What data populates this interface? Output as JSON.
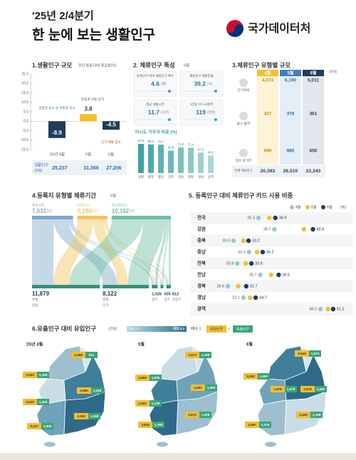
{
  "header": {
    "title_line1": "'25년 2/4분기",
    "title_line2": "한 눈에 보는 생활인구",
    "logo": "국가데이터처"
  },
  "section1": {
    "title": "1.생활인구 규모",
    "subtitle": "전년 동월 대비 증감률(%)",
    "ylim": [
      -15,
      25
    ],
    "yticks": [
      {
        "value": 25,
        "label": "25.0"
      },
      {
        "value": 20,
        "label": "20.0"
      },
      {
        "value": 15,
        "label": "15.0"
      },
      {
        "value": 10,
        "label": "10.0"
      },
      {
        "value": 5,
        "label": "5.0"
      },
      {
        "value": 0,
        "label": "0.0"
      },
      {
        "value": -5,
        "label": "-5.0"
      },
      {
        "value": -10,
        "label": "-10.0"
      },
      {
        "value": -15,
        "label": "-15.0"
      }
    ],
    "categories": [
      "'25년 4월",
      "5월",
      "6월"
    ],
    "values": [
      -8.9,
      3.8,
      -4.5
    ],
    "colors": [
      "#1f3d5c",
      "#f2bf2f",
      "#1f3d5c"
    ],
    "notes": [
      "공휴일 감소 등 이동량 감소",
      "연휴로 이동 증가",
      "단기 체류 감소"
    ],
    "row_label": "생활인구",
    "row_unit": "(천명)",
    "row_cells": [
      "25,237",
      "31,369",
      "27,206"
    ]
  },
  "section2": {
    "title": "2. 체류인구 특성",
    "month": "6월",
    "cards": [
      {
        "label": "등록인구 대비 체류인구 배수",
        "value": 4.6,
        "unit": "(배)"
      },
      {
        "label": "체류인구 재방문율",
        "value": 39.2,
        "unit": "(%)"
      },
      {
        "label": "평균 체류시간",
        "value": 11.7,
        "unit": "(시간)"
      },
      {
        "label": "1인당 카드사용액",
        "value": 119,
        "unit": "(천원)"
      }
    ],
    "share": {
      "title": "타시도 거주자 비중 (%)",
      "categories": [
        "강원",
        "충북",
        "충남",
        "전북",
        "전남",
        "경북",
        "경남",
        "광역"
      ],
      "values": [
        81.8,
        80.3,
        79.7,
        62.9,
        72.0,
        71.4,
        57.3,
        49.2
      ],
      "value_labels": [
        "81.8",
        "80.3",
        "79.7",
        "62.9",
        "72.0",
        "71.4",
        "57.3",
        "49.2"
      ],
      "color": "#3aa3a0"
    }
  },
  "section3": {
    "title": "3.체류인구 유형별 규모",
    "unit": "(천명)",
    "months": [
      "4월",
      "5월",
      "6월"
    ],
    "month_colors": [
      "#f2bf2f",
      "#3e7fc1",
      "#1f3d5c"
    ],
    "rows": [
      {
        "label": "단기숙박",
        "cells": [
          "4,074",
          "6,190",
          "5,011"
        ]
      },
      {
        "label": "통근·통학",
        "cells": [
          "427",
          "378",
          "361"
        ]
      },
      {
        "label": "잦은 실거주",
        "cells": [
          "696",
          "880",
          "650"
        ]
      }
    ],
    "total": {
      "label": "전체 체류인구",
      "cells": [
        "20,383",
        "26,510",
        "22,343"
      ]
    }
  },
  "section4": {
    "title": "4.등록지 유형별 체류기간",
    "month": "6월",
    "unit": "천명",
    "sources": [
      {
        "name": "동일시도",
        "value": 7031,
        "label": "7,031",
        "color": "#7fa8c9"
      },
      {
        "name": "인접시도",
        "value": 5150,
        "label": "5,150",
        "color": "#f0c35a"
      },
      {
        "name": "비인접시도",
        "value": 10162,
        "label": "10,162",
        "color": "#6fbfa2"
      }
    ],
    "targets": [
      {
        "name": "당일",
        "value": 11879,
        "label": "11,879"
      },
      {
        "name": "단기",
        "value": 8122,
        "label": "8,122"
      },
      {
        "name": "중기",
        "value": 1026,
        "label": "1,026"
      },
      {
        "name": "장기",
        "value": 505,
        "label": "505"
      },
      {
        "name": "초장기",
        "value": 812,
        "label": "812"
      }
    ]
  },
  "section5": {
    "title": "5. 등록인구 대비 체류인구 카드 사용 비중",
    "months": [
      "4월",
      "5월",
      "6월"
    ],
    "colors": [
      "#9cc9c4",
      "#f2bf2f",
      "#1f3d5c"
    ],
    "unit": "(%)",
    "rows": [
      {
        "region": "전국",
        "values": [
          35.3,
          37.6,
          38.9
        ],
        "low_label": "35.3",
        "high_label": "38.9"
      },
      {
        "region": "강원",
        "values": [
          38.7,
          45.0,
          46.9
        ],
        "low_label": "38.7",
        "high_label": "46.9"
      },
      {
        "region": "충북",
        "values": [
          30.0,
          32.1,
          33.2
        ],
        "low_label": "30.0",
        "high_label": "33.2"
      },
      {
        "region": "충남",
        "values": [
          33.3,
          35.0,
          36.2
        ],
        "low_label": "33.3",
        "high_label": "36.2"
      },
      {
        "region": "전북",
        "values": [
          30.8,
          32.6,
          33.8
        ],
        "low_label": "30.8",
        "high_label": "33.8"
      },
      {
        "region": "전남",
        "values": [
          35.7,
          38.0,
          39.6
        ],
        "low_label": "35.7",
        "high_label": "39.6"
      },
      {
        "region": "경북",
        "values": [
          28.8,
          31.0,
          32.7
        ],
        "low_label": "28.8",
        "high_label": "32.7"
      },
      {
        "region": "경남",
        "values": [
          32.1,
          33.5,
          34.7
        ],
        "low_label": "32.1",
        "high_label": "34.7"
      },
      {
        "region": "광역",
        "values": [
          48.5,
          50.1,
          51.2
        ],
        "low_label": "48.5",
        "high_label": "51.2"
      }
    ]
  },
  "section6": {
    "title": "6.유출인구 대비 유입인구",
    "unit": "(천명)",
    "legend": {
      "min_label": "최소 1.4",
      "max_label": "최대 3.3",
      "formula": "배수 =",
      "inflow": "유입인구",
      "slash": "/",
      "outflow": "유출인구"
    },
    "maps": [
      {
        "month": "'25년 4월",
        "pairs": [
          [
            "2,458",
            "611"
          ],
          [
            "3,002",
            "1,169"
          ],
          [
            "2,025",
            "1,025"
          ],
          [
            "3,127",
            "1,608"
          ],
          [
            "2,660",
            "1,194"
          ],
          [
            "2,283",
            "1,158"
          ]
        ]
      },
      {
        "month": "5월",
        "pairs": [
          [
            "3,672",
            "1,199"
          ],
          [
            "3,896",
            "1,636"
          ],
          [
            "2,531",
            "1,139"
          ],
          [
            "3,916",
            "1,798"
          ],
          [
            "3,492",
            "1,690"
          ],
          [
            "2,670",
            "1,208"
          ]
        ]
      },
      {
        "month": "6월",
        "pairs": [
          [
            "3,540",
            "1,074"
          ],
          [
            "3,083",
            "1,467"
          ],
          [
            "1,878",
            "1,078"
          ],
          [
            "2,957",
            "1,234"
          ],
          [
            "2,875",
            "1,090"
          ],
          [
            "2,440",
            "1,188"
          ]
        ]
      }
    ]
  }
}
